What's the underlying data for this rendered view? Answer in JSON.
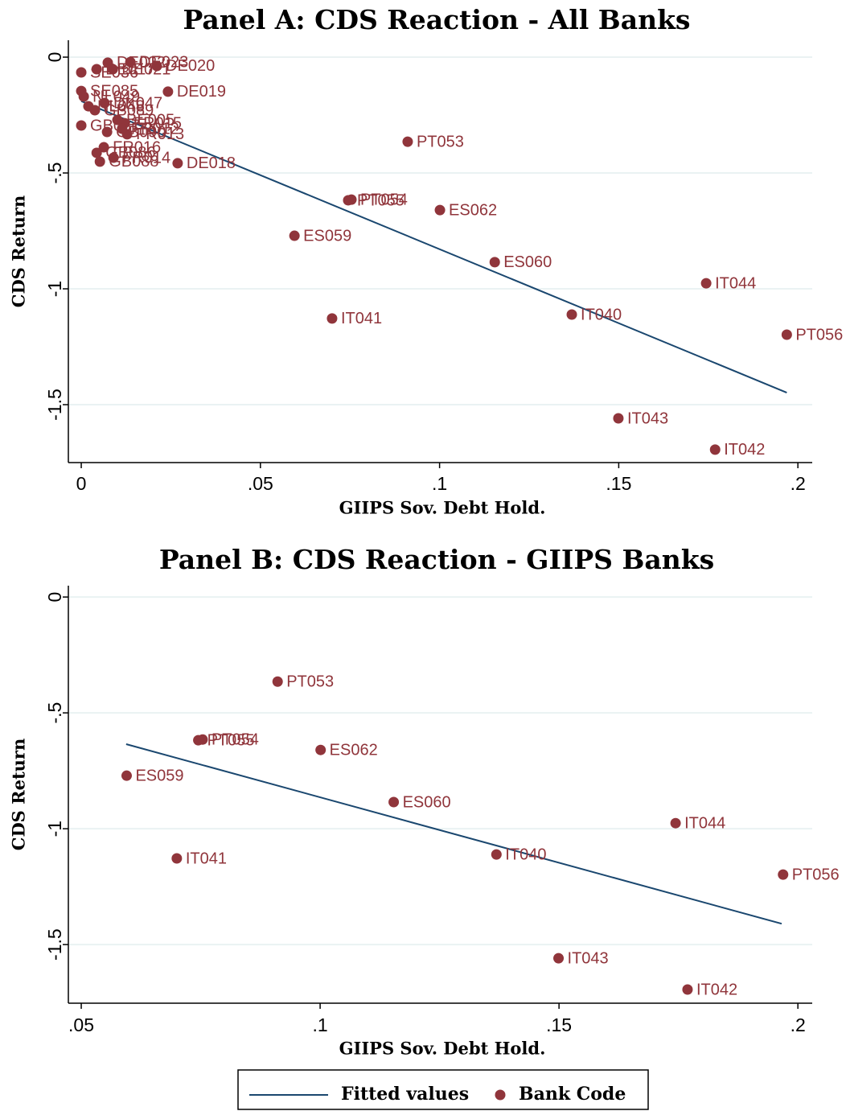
{
  "chart_data": [
    {
      "type": "scatter",
      "title": "Panel A: CDS Reaction - All Banks",
      "x_label": "GIIPS Sov. Debt Hold.",
      "y_label": "CDS Return",
      "xlim": [
        -0.0036,
        0.204
      ],
      "ylim": [
        -1.75,
        0.073
      ],
      "xticks": [
        0,
        {
          "value": 0.05,
          "label": ".05"
        },
        {
          "value": 0.1,
          "label": ".1"
        },
        {
          "value": 0.15,
          "label": ".15"
        },
        {
          "value": 0.2,
          "label": ".2"
        }
      ],
      "yticks": [
        0,
        {
          "value": -0.5,
          "label": "-.5"
        },
        {
          "value": -1,
          "label": "-1"
        },
        {
          "value": -1.5,
          "label": "-1.5"
        }
      ],
      "grid": true,
      "series": [
        {
          "name": "Fitted values",
          "type": "line",
          "color": "#1a476f",
          "x": [
            0,
            0.1969
          ],
          "values": [
            -0.19,
            -1.448
          ]
        },
        {
          "name": "Bank Code",
          "type": "scatter",
          "color": "#90353b",
          "labels": [
            "SE036",
            "DE017",
            "DE022",
            "DE023",
            "DE020",
            "DE021",
            "SE085",
            "NL049",
            "NL048",
            "DK047",
            "GB089",
            "GB090",
            "GB087",
            "BE005",
            "FR015",
            "FR013",
            "FR012",
            "FR016",
            "FR014",
            "GB086",
            "GB088",
            "DE019",
            "DE018",
            "PT053",
            "PT054",
            "PT055",
            "ES062",
            "ES059",
            "ES060",
            "IT044",
            "IT041",
            "IT040",
            "PT056",
            "IT043",
            "IT042"
          ],
          "x": [
            0,
            0.0043,
            0.0074,
            0.0137,
            0.0211,
            0.0088,
            0,
            0.0007,
            0.002,
            0.0065,
            0.0038,
            0.0072,
            0,
            0.0101,
            0.0121,
            0.0128,
            0.0114,
            0.0063,
            0.009,
            0.0043,
            0.0052,
            0.0242,
            0.0269,
            0.0911,
            0.0754,
            0.0745,
            0.1001,
            0.0595,
            0.1154,
            0.1744,
            0.07,
            0.1369,
            0.1969,
            0.1499,
            0.1769
          ],
          "values": [
            -0.066,
            -0.052,
            -0.024,
            -0.021,
            -0.038,
            -0.052,
            -0.146,
            -0.17,
            -0.212,
            -0.198,
            -0.229,
            -0.323,
            -0.295,
            -0.271,
            -0.285,
            -0.333,
            -0.309,
            -0.389,
            -0.434,
            -0.413,
            -0.451,
            -0.149,
            -0.458,
            -0.365,
            -0.615,
            -0.618,
            -0.66,
            -0.771,
            -0.885,
            -0.976,
            -1.128,
            -1.111,
            -1.198,
            -1.559,
            -1.694
          ]
        }
      ]
    },
    {
      "type": "scatter",
      "title": "Panel B: CDS Reaction - GIIPS Banks",
      "x_label": "GIIPS Sov. Debt Hold.",
      "y_label": "CDS Return",
      "xlim": [
        0.0473,
        0.203
      ],
      "ylim": [
        -1.753,
        0.049
      ],
      "xticks": [
        {
          "value": 0.05,
          "label": ".05"
        },
        {
          "value": 0.1,
          "label": ".1"
        },
        {
          "value": 0.15,
          "label": ".15"
        },
        {
          "value": 0.2,
          "label": ".2"
        }
      ],
      "yticks": [
        0,
        {
          "value": -0.5,
          "label": "-.5"
        },
        {
          "value": -1,
          "label": "-1"
        },
        {
          "value": -1.5,
          "label": "-1.5"
        }
      ],
      "grid": true,
      "series": [
        {
          "type": "line",
          "color": "#1a476f",
          "x": [
            0.0594,
            0.1966
          ],
          "values": [
            -0.635,
            -1.41
          ]
        },
        {
          "type": "scatter",
          "color": "#90353b",
          "labels": [
            "PT053",
            "PT054",
            "PT055",
            "ES062",
            "ES059",
            "ES060",
            "IT044",
            "IT041",
            "IT040",
            "PT056",
            "IT043",
            "IT042"
          ],
          "x": [
            0.0911,
            0.0754,
            0.0745,
            0.1001,
            0.0595,
            0.1154,
            0.1744,
            0.07,
            0.1369,
            0.1969,
            0.1499,
            0.1769
          ],
          "values": [
            -0.365,
            -0.615,
            -0.618,
            -0.66,
            -0.771,
            -0.885,
            -0.976,
            -1.128,
            -1.111,
            -1.198,
            -1.559,
            -1.694
          ]
        }
      ]
    }
  ]
}
